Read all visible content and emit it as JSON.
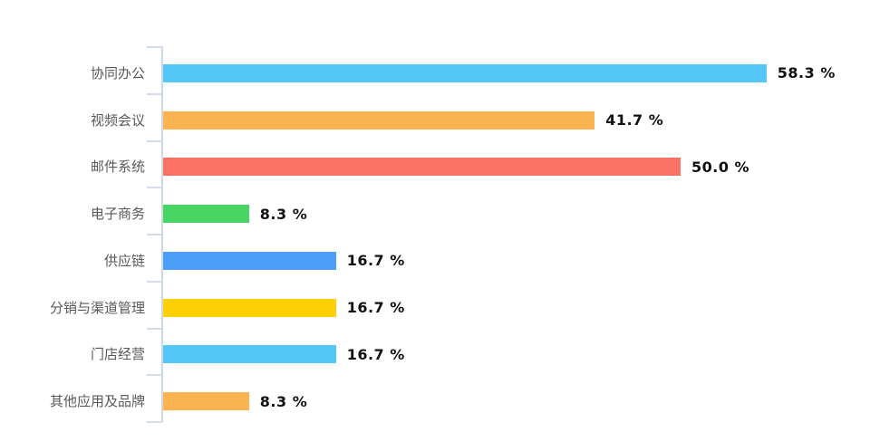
{
  "chart_data": {
    "type": "bar",
    "orientation": "horizontal",
    "title": "",
    "xlabel": "",
    "ylabel": "",
    "categories": [
      "协同办公",
      "视频会议",
      "邮件系统",
      "电子商务",
      "供应链",
      "分销与渠道管理",
      "门店经营",
      "其他应用及品牌"
    ],
    "values": [
      58.3,
      41.7,
      50.0,
      8.3,
      16.7,
      16.7,
      16.7,
      8.3
    ],
    "value_labels": [
      "58.3 %",
      "41.7 %",
      "50.0 %",
      "8.3 %",
      "16.7 %",
      "16.7 %",
      "16.7 %",
      "8.3 %"
    ],
    "bar_colors": [
      "#54c7f8",
      "#fcb351",
      "#fc7265",
      "#47d463",
      "#4c9df6",
      "#fdd006",
      "#54c7f8",
      "#fcb351"
    ],
    "xlim": [
      0,
      68.3
    ],
    "grid": false,
    "legend": "none",
    "value_labels_position": "end-of-bar"
  },
  "styles": {
    "background": "#ffffff",
    "axis_color": "#ccd8e4",
    "tick_color": "#d2dde8",
    "category_label_color": "#595959",
    "value_label_color": "#111111"
  }
}
